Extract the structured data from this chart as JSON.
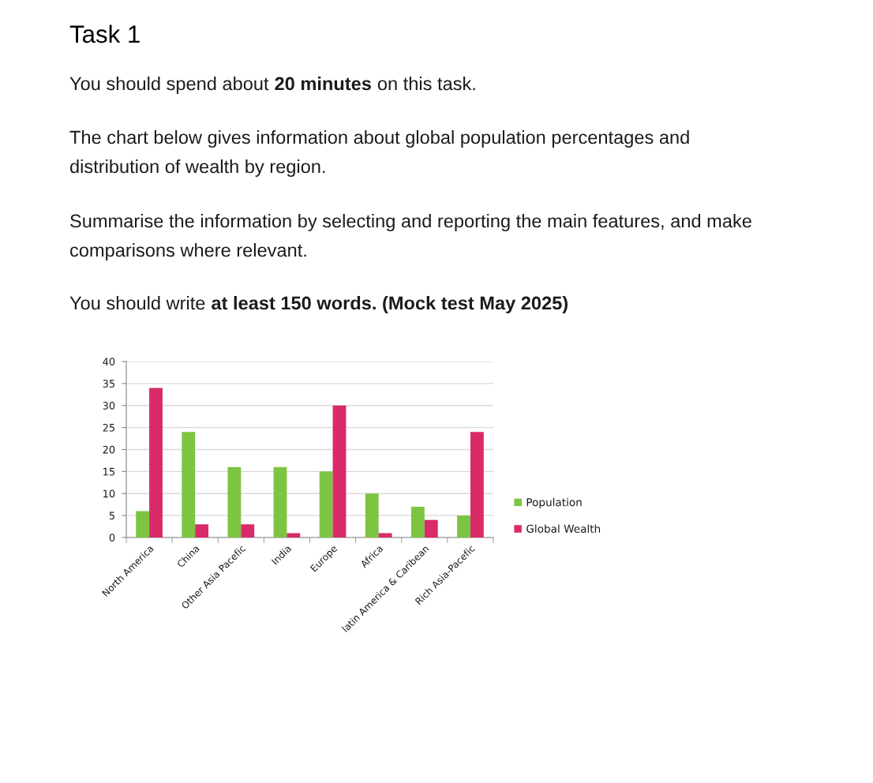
{
  "chart_data": {
    "type": "bar",
    "title": "Task 1",
    "annotations": [
      "You should spend about",
      "20 minutes",
      "on this task.",
      "The chart below gives information about global population percentages and distribution of wealth by region.",
      "Summarise the information by selecting and reporting the main features, and make comparisons where relevant.",
      "You should write",
      "at least 150 words. (Mock test May 2025)"
    ],
    "categories": [
      "North America",
      "China",
      "Other Asia Pacefic",
      "India",
      "Europe",
      "Africa",
      "latin America & Caribean",
      "Rich Asia-Pacefic"
    ],
    "series": [
      {
        "name": "Population",
        "color": "#7dc443",
        "values": [
          6,
          24,
          16,
          16,
          15,
          10,
          7,
          5
        ]
      },
      {
        "name": "Global Wealth",
        "color": "#d92b6a",
        "values": [
          34,
          3,
          3,
          1,
          30,
          1,
          4,
          24
        ]
      }
    ],
    "ylim": [
      0,
      40
    ],
    "yticks": [
      0,
      5,
      10,
      15,
      20,
      25,
      30,
      35,
      40
    ],
    "grid": "y",
    "legend": "right"
  }
}
